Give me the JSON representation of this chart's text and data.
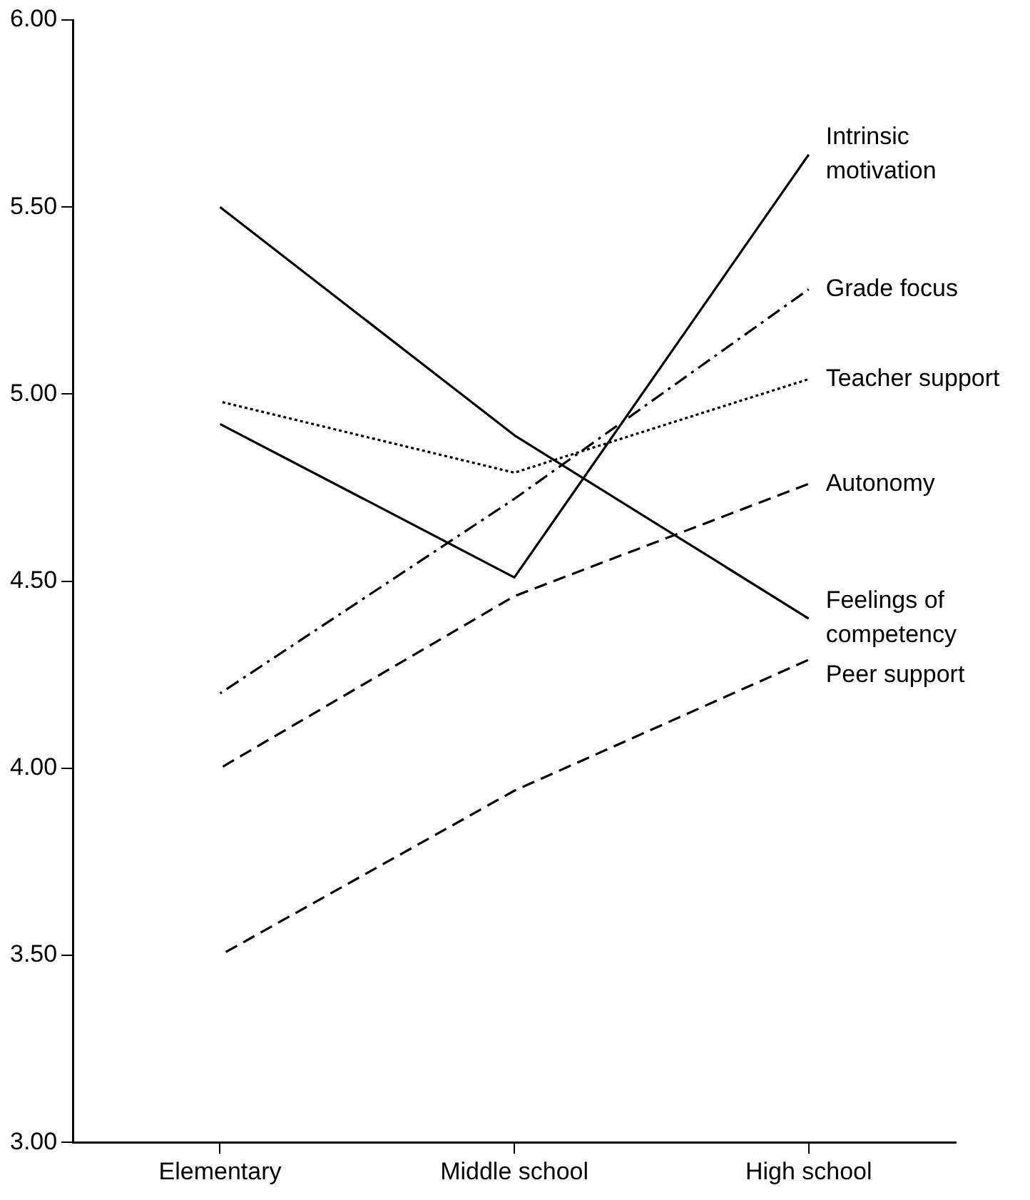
{
  "chart_data": {
    "type": "line",
    "categories": [
      "Elementary",
      "Middle school",
      "High school"
    ],
    "series": [
      {
        "name": "Intrinsic motivation",
        "color": "#000000",
        "line_style": "solid",
        "values": [
          4.92,
          4.51,
          5.64
        ]
      },
      {
        "name": "Grade focus",
        "color": "#000000",
        "line_style": "dashdot",
        "values": [
          4.2,
          4.72,
          5.28
        ]
      },
      {
        "name": "Teacher support",
        "color": "#000000",
        "line_style": "dotted",
        "values": [
          4.98,
          4.79,
          5.04
        ]
      },
      {
        "name": "Autonomy",
        "color": "#000000",
        "line_style": "dashed",
        "values": [
          4.0,
          4.46,
          4.76
        ]
      },
      {
        "name": "Feelings of competency",
        "color": "#000000",
        "line_style": "solid",
        "values": [
          5.5,
          4.89,
          4.4
        ]
      },
      {
        "name": "Peer support",
        "color": "#000000",
        "line_style": "dashed",
        "values": [
          3.5,
          3.94,
          4.29
        ]
      }
    ],
    "ylim": [
      3,
      6
    ],
    "yticks": [
      {
        "value": 3,
        "label": "3.00"
      },
      {
        "value": 3.5,
        "label": "3.50"
      },
      {
        "value": 4,
        "label": "4.00"
      },
      {
        "value": 4.5,
        "label": "4.50"
      },
      {
        "value": 5,
        "label": "5.00"
      },
      {
        "value": 5.5,
        "label": "5.50"
      },
      {
        "value": 6,
        "label": "6.00"
      }
    ],
    "grid": false,
    "legend": false,
    "marker": "none"
  }
}
